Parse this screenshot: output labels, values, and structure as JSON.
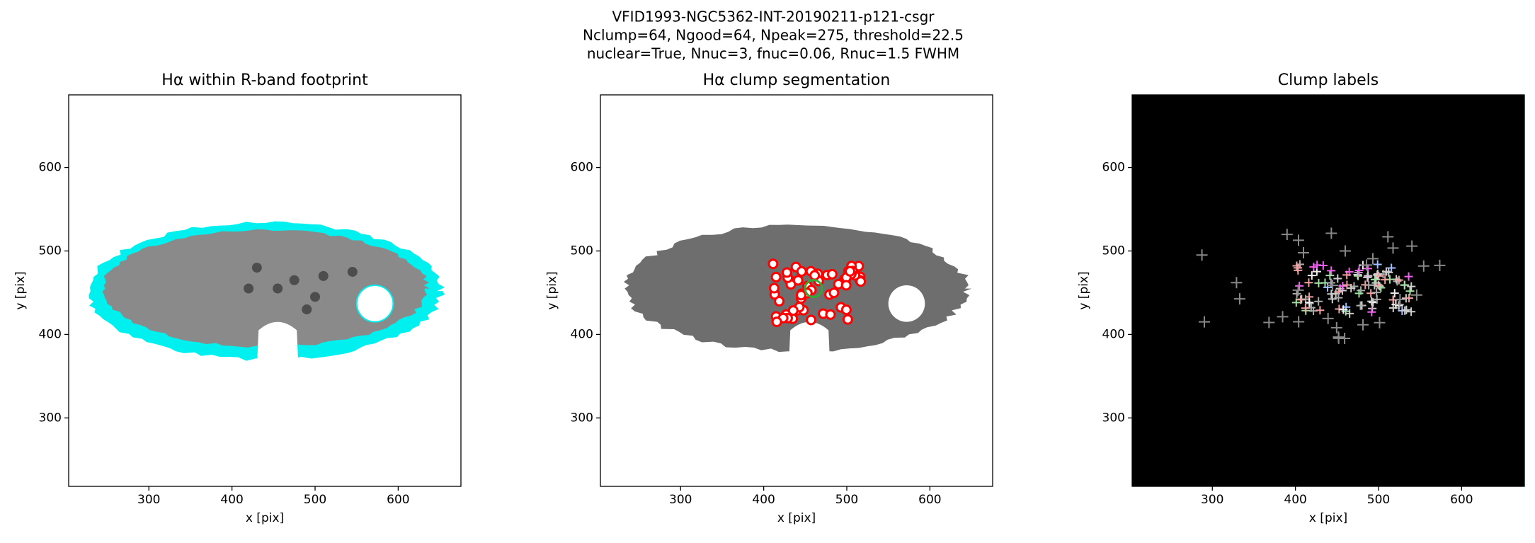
{
  "figure": {
    "title_lines": [
      "VFID1993-NGC5362-INT-20190211-p121-csgr",
      "Nclump=64, Ngood=64, Npeak=275, threshold=22.5",
      "nuclear=True, Nnuc=3, fnuc=0.06, Rnuc=1.5 FWHM"
    ]
  },
  "chart_data": [
    {
      "type": "image",
      "title": "Hα within R-band footprint",
      "xlabel": "x [pix]",
      "ylabel": "y [pix]",
      "xlim": [
        203.5,
        675.5
      ],
      "ylim": [
        218,
        687
      ],
      "xticks": [
        300,
        400,
        500,
        600
      ],
      "yticks": [
        300,
        400,
        500,
        600
      ],
      "background": "#ffffff"
    },
    {
      "type": "image",
      "title": "Hα clump segmentation",
      "xlabel": "x [pix]",
      "ylabel": "y [pix]",
      "xlim": [
        203.5,
        675.5
      ],
      "ylim": [
        218,
        687
      ],
      "xticks": [
        300,
        400,
        500,
        600
      ],
      "yticks": [
        300,
        400,
        500,
        600
      ],
      "background": "#ffffff"
    },
    {
      "type": "image",
      "title": "Clump labels",
      "xlabel": "x [pix]",
      "ylabel": "y [pix]",
      "xlim": [
        203.5,
        675.5
      ],
      "ylim": [
        218,
        687
      ],
      "xticks": [
        300,
        400,
        500,
        600
      ],
      "yticks": [
        300,
        400,
        500,
        600
      ],
      "background": "#000000"
    }
  ]
}
